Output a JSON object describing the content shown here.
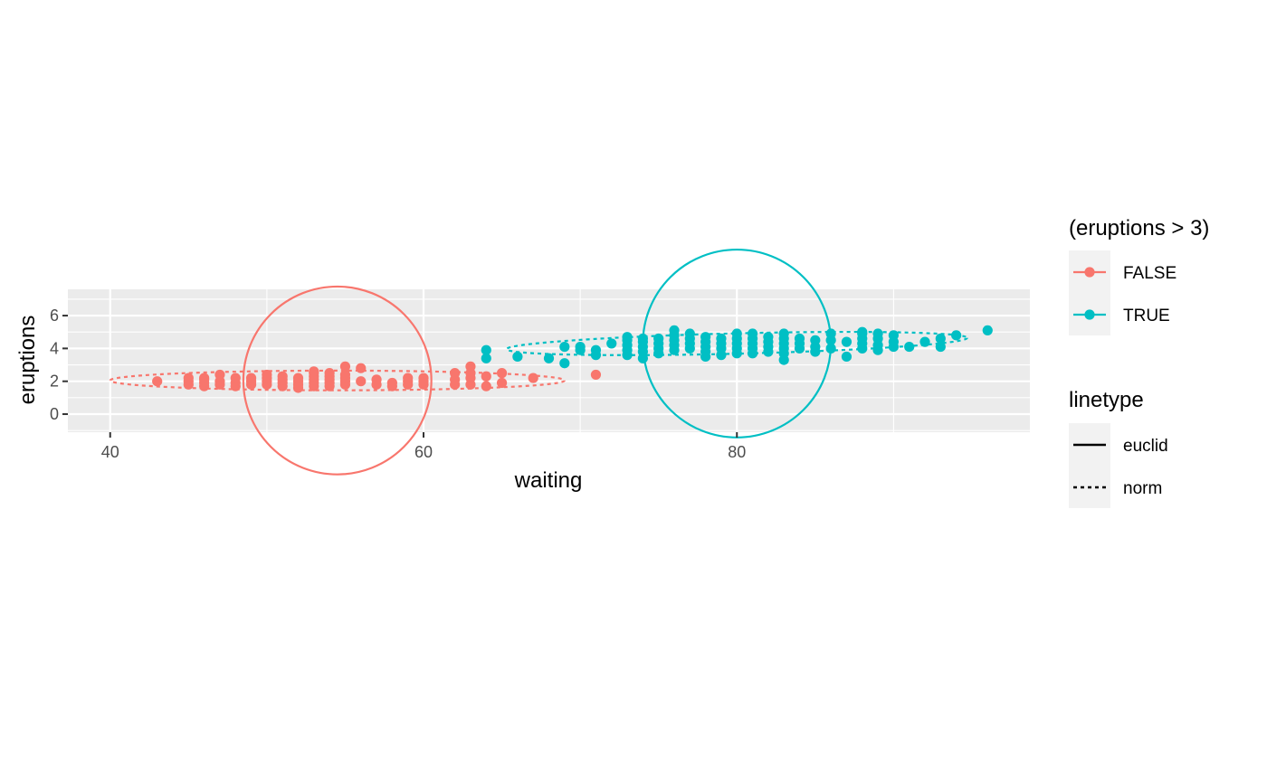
{
  "chart_data": {
    "type": "scatter",
    "xlabel": "waiting",
    "ylabel": "eruptions",
    "xlim": [
      37.3,
      98.7
    ],
    "ylim": [
      -1.1,
      7.6
    ],
    "x_ticks": [
      40,
      60,
      80
    ],
    "x_tick_labels": [
      "40",
      "60",
      "80"
    ],
    "y_ticks": [
      0,
      2,
      4,
      6
    ],
    "y_tick_labels": [
      "0",
      "2",
      "4",
      "6"
    ],
    "grid": true,
    "legend_position": "right",
    "colour_legend": {
      "title": "(eruptions > 3)",
      "entries": [
        {
          "label": "FALSE",
          "color": "#F8766D"
        },
        {
          "label": "TRUE",
          "color": "#00BFC4"
        }
      ]
    },
    "linetype_legend": {
      "title": "linetype",
      "entries": [
        {
          "label": "euclid",
          "style": "solid"
        },
        {
          "label": "norm",
          "style": "dashed"
        }
      ]
    },
    "series": [
      {
        "name": "FALSE",
        "color": "#F8766D",
        "points": [
          [
            43,
            2.0
          ],
          [
            45,
            1.8
          ],
          [
            45,
            2.0
          ],
          [
            45,
            2.2
          ],
          [
            46,
            1.7
          ],
          [
            46,
            1.9
          ],
          [
            46,
            2.1
          ],
          [
            46,
            2.2
          ],
          [
            47,
            1.8
          ],
          [
            47,
            2.0
          ],
          [
            47,
            2.4
          ],
          [
            48,
            1.7
          ],
          [
            48,
            1.9
          ],
          [
            48,
            2.2
          ],
          [
            49,
            1.8
          ],
          [
            49,
            2.0
          ],
          [
            49,
            2.2
          ],
          [
            50,
            1.8
          ],
          [
            50,
            2.0
          ],
          [
            50,
            2.2
          ],
          [
            50,
            2.4
          ],
          [
            51,
            1.7
          ],
          [
            51,
            1.9
          ],
          [
            51,
            2.1
          ],
          [
            51,
            2.3
          ],
          [
            52,
            1.6
          ],
          [
            52,
            1.8
          ],
          [
            52,
            2.0
          ],
          [
            52,
            2.2
          ],
          [
            53,
            1.7
          ],
          [
            53,
            1.9
          ],
          [
            53,
            2.1
          ],
          [
            53,
            2.3
          ],
          [
            53,
            2.5
          ],
          [
            53,
            2.6
          ],
          [
            54,
            1.7
          ],
          [
            54,
            1.9
          ],
          [
            54,
            2.1
          ],
          [
            54,
            2.3
          ],
          [
            54,
            2.5
          ],
          [
            55,
            1.8
          ],
          [
            55,
            2.0
          ],
          [
            55,
            2.2
          ],
          [
            55,
            2.4
          ],
          [
            55,
            2.9
          ],
          [
            56,
            2.0
          ],
          [
            56,
            2.8
          ],
          [
            57,
            1.8
          ],
          [
            57,
            2.1
          ],
          [
            58,
            1.7
          ],
          [
            58,
            1.9
          ],
          [
            59,
            1.8
          ],
          [
            59,
            2.0
          ],
          [
            59,
            2.2
          ],
          [
            60,
            1.8
          ],
          [
            60,
            2.0
          ],
          [
            60,
            2.2
          ],
          [
            62,
            1.8
          ],
          [
            62,
            2.1
          ],
          [
            62,
            2.5
          ],
          [
            63,
            1.8
          ],
          [
            63,
            2.2
          ],
          [
            63,
            2.5
          ],
          [
            63,
            2.9
          ],
          [
            64,
            1.7
          ],
          [
            64,
            2.3
          ],
          [
            65,
            1.9
          ],
          [
            65,
            2.5
          ],
          [
            67,
            2.2
          ],
          [
            71,
            2.4
          ]
        ],
        "euclid_circle": {
          "center": [
            54.5,
            2.05
          ],
          "radius_x": 6.0
        },
        "norm_ellipse": {
          "center": [
            54.5,
            2.05
          ],
          "semi_x": 14.5,
          "semi_y": 0.6
        }
      },
      {
        "name": "TRUE",
        "color": "#00BFC4",
        "points": [
          [
            64,
            3.4
          ],
          [
            64,
            3.9
          ],
          [
            66,
            3.5
          ],
          [
            68,
            3.4
          ],
          [
            69,
            3.1
          ],
          [
            69,
            4.1
          ],
          [
            70,
            3.9
          ],
          [
            70,
            4.1
          ],
          [
            71,
            3.6
          ],
          [
            71,
            3.9
          ],
          [
            72,
            4.3
          ],
          [
            73,
            3.6
          ],
          [
            73,
            3.9
          ],
          [
            73,
            4.2
          ],
          [
            73,
            4.5
          ],
          [
            73,
            4.7
          ],
          [
            74,
            3.4
          ],
          [
            74,
            3.8
          ],
          [
            74,
            4.1
          ],
          [
            74,
            4.4
          ],
          [
            74,
            4.6
          ],
          [
            75,
            3.7
          ],
          [
            75,
            4.0
          ],
          [
            75,
            4.3
          ],
          [
            75,
            4.6
          ],
          [
            76,
            3.9
          ],
          [
            76,
            4.2
          ],
          [
            76,
            4.5
          ],
          [
            76,
            4.8
          ],
          [
            76,
            5.1
          ],
          [
            77,
            4.0
          ],
          [
            77,
            4.3
          ],
          [
            77,
            4.6
          ],
          [
            77,
            4.9
          ],
          [
            78,
            3.5
          ],
          [
            78,
            3.8
          ],
          [
            78,
            4.1
          ],
          [
            78,
            4.4
          ],
          [
            78,
            4.7
          ],
          [
            79,
            3.6
          ],
          [
            79,
            4.0
          ],
          [
            79,
            4.3
          ],
          [
            79,
            4.6
          ],
          [
            80,
            3.7
          ],
          [
            80,
            4.0
          ],
          [
            80,
            4.3
          ],
          [
            80,
            4.6
          ],
          [
            80,
            4.9
          ],
          [
            81,
            3.7
          ],
          [
            81,
            4.0
          ],
          [
            81,
            4.3
          ],
          [
            81,
            4.6
          ],
          [
            81,
            4.9
          ],
          [
            82,
            3.8
          ],
          [
            82,
            4.1
          ],
          [
            82,
            4.4
          ],
          [
            82,
            4.7
          ],
          [
            83,
            3.3
          ],
          [
            83,
            3.7
          ],
          [
            83,
            4.0
          ],
          [
            83,
            4.3
          ],
          [
            83,
            4.6
          ],
          [
            83,
            4.9
          ],
          [
            84,
            4.0
          ],
          [
            84,
            4.3
          ],
          [
            84,
            4.6
          ],
          [
            85,
            3.8
          ],
          [
            85,
            4.1
          ],
          [
            85,
            4.5
          ],
          [
            86,
            4.0
          ],
          [
            86,
            4.5
          ],
          [
            86,
            4.9
          ],
          [
            87,
            3.5
          ],
          [
            87,
            4.4
          ],
          [
            88,
            4.0
          ],
          [
            88,
            4.3
          ],
          [
            88,
            4.6
          ],
          [
            88,
            4.9
          ],
          [
            88,
            5.0
          ],
          [
            89,
            3.9
          ],
          [
            89,
            4.2
          ],
          [
            89,
            4.6
          ],
          [
            89,
            4.9
          ],
          [
            90,
            4.1
          ],
          [
            90,
            4.4
          ],
          [
            90,
            4.8
          ],
          [
            91,
            4.1
          ],
          [
            92,
            4.4
          ],
          [
            93,
            4.1
          ],
          [
            93,
            4.6
          ],
          [
            94,
            4.8
          ],
          [
            96,
            5.1
          ]
        ],
        "euclid_circle": {
          "center": [
            80.0,
            4.3
          ],
          "radius_x": 6.0
        },
        "norm_ellipse": {
          "center": [
            80.0,
            4.3
          ],
          "semi_x": 14.7,
          "semi_y": 0.62,
          "angle_deg": 1.4
        }
      }
    ]
  }
}
